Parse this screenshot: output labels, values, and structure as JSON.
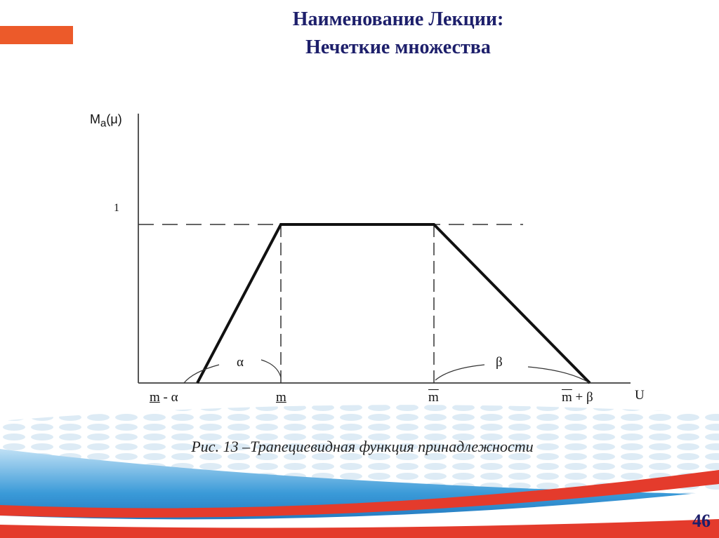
{
  "header": {
    "title": "Наименование Лекции:",
    "subtitle": "Нечеткие множества",
    "accent_color": "#ec5a2a",
    "title_color": "#1d1f6b"
  },
  "diagram": {
    "y_axis_label_main": "M",
    "y_axis_label_sub": "a",
    "y_axis_label_arg": "(μ)",
    "y_tick": "1",
    "x_axis_label": "U",
    "x_labels": {
      "m_minus_alpha_m": "m",
      "m_minus_alpha_rest": " - α",
      "m_lower": "m",
      "m_upper": "m",
      "m_plus_beta_m": "m",
      "m_plus_beta_rest": " + β"
    },
    "alpha": "α",
    "beta": "β"
  },
  "caption": "Рис. 13 –Трапециевидная функция принадлежности",
  "page_number": "46"
}
